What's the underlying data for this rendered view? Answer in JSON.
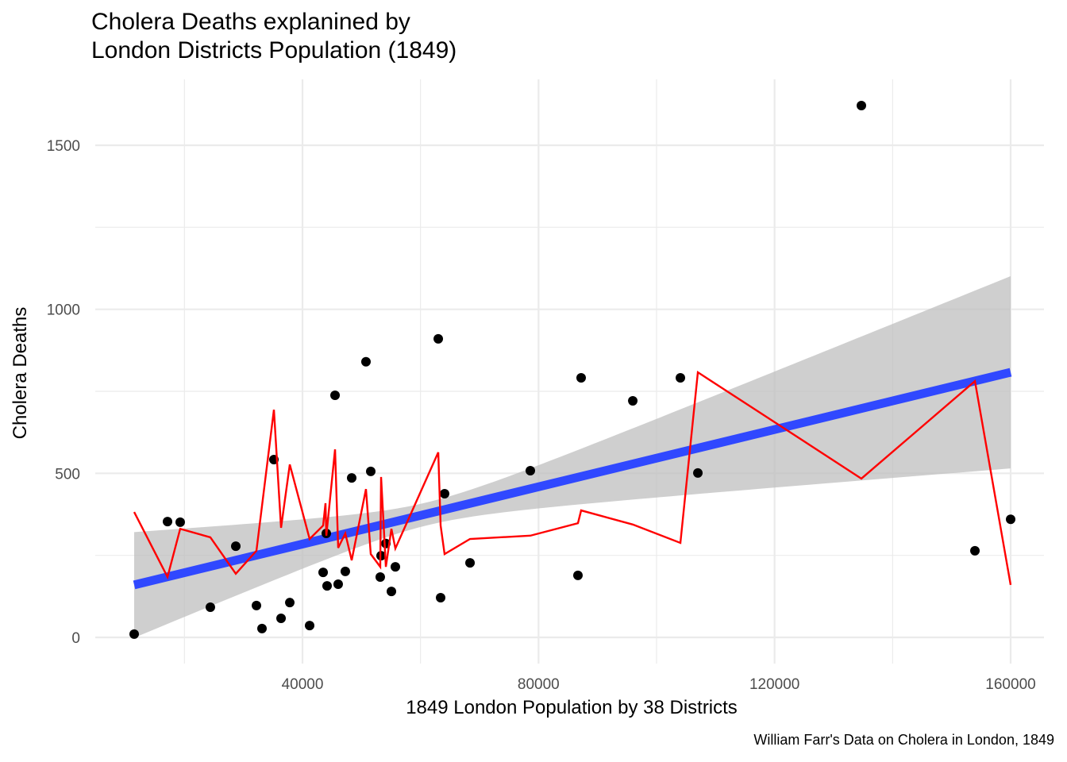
{
  "chart_data": {
    "type": "scatter",
    "title_lines": [
      "Cholera Deaths explanined by",
      "London Districts Population (1849)"
    ],
    "xlabel": "1849 London Population by 38 Districts",
    "ylabel": "Cholera Deaths",
    "caption": "William Farr's Data on Cholera in London, 1849",
    "xlim": [
      3000,
      167500
    ],
    "ylim": [
      -80,
      1700
    ],
    "x_ticks": [
      40000,
      80000,
      120000,
      160000
    ],
    "x_tick_labels": [
      "40000",
      "80000",
      "120000",
      "160000"
    ],
    "x_minor_grid": [
      20000,
      60000,
      100000,
      140000
    ],
    "y_ticks": [
      0,
      500,
      1000,
      1500
    ],
    "y_tick_labels": [
      "0",
      "500",
      "1000",
      "1500"
    ],
    "y_minor_grid": [
      250,
      750,
      1250
    ],
    "grid": true,
    "legend": "none",
    "colors": {
      "points": "#000000",
      "fit_line": "#3048ff",
      "ci_band": "#bdbdbd",
      "red_line": "#ff0000",
      "grid": "#ebebeb"
    },
    "points": [
      {
        "x": 11480,
        "y": 10
      },
      {
        "x": 17130,
        "y": 353
      },
      {
        "x": 19280,
        "y": 351
      },
      {
        "x": 24390,
        "y": 92
      },
      {
        "x": 28700,
        "y": 278
      },
      {
        "x": 32200,
        "y": 97
      },
      {
        "x": 33140,
        "y": 27
      },
      {
        "x": 35160,
        "y": 542
      },
      {
        "x": 36370,
        "y": 58
      },
      {
        "x": 37850,
        "y": 106
      },
      {
        "x": 41210,
        "y": 36
      },
      {
        "x": 43500,
        "y": 198
      },
      {
        "x": 44040,
        "y": 317
      },
      {
        "x": 44170,
        "y": 157
      },
      {
        "x": 45520,
        "y": 738
      },
      {
        "x": 46050,
        "y": 162
      },
      {
        "x": 47260,
        "y": 201
      },
      {
        "x": 48340,
        "y": 486
      },
      {
        "x": 50760,
        "y": 840
      },
      {
        "x": 51570,
        "y": 506
      },
      {
        "x": 53180,
        "y": 184
      },
      {
        "x": 53320,
        "y": 249
      },
      {
        "x": 54130,
        "y": 286
      },
      {
        "x": 55070,
        "y": 140
      },
      {
        "x": 55740,
        "y": 215
      },
      {
        "x": 63010,
        "y": 910
      },
      {
        "x": 63410,
        "y": 121
      },
      {
        "x": 64080,
        "y": 438
      },
      {
        "x": 68390,
        "y": 227
      },
      {
        "x": 78610,
        "y": 508
      },
      {
        "x": 86680,
        "y": 189
      },
      {
        "x": 87220,
        "y": 791
      },
      {
        "x": 95970,
        "y": 721
      },
      {
        "x": 104040,
        "y": 791
      },
      {
        "x": 107000,
        "y": 501
      },
      {
        "x": 134710,
        "y": 1621
      },
      {
        "x": 153950,
        "y": 264
      },
      {
        "x": 160000,
        "y": 360
      }
    ],
    "red_line": [
      {
        "x": 11480,
        "y": 382
      },
      {
        "x": 17130,
        "y": 184
      },
      {
        "x": 19280,
        "y": 331
      },
      {
        "x": 24390,
        "y": 305
      },
      {
        "x": 28700,
        "y": 194
      },
      {
        "x": 32200,
        "y": 264
      },
      {
        "x": 35160,
        "y": 694
      },
      {
        "x": 36370,
        "y": 334
      },
      {
        "x": 37850,
        "y": 527
      },
      {
        "x": 41210,
        "y": 300
      },
      {
        "x": 43500,
        "y": 341
      },
      {
        "x": 43900,
        "y": 409
      },
      {
        "x": 44040,
        "y": 310
      },
      {
        "x": 45520,
        "y": 573
      },
      {
        "x": 46050,
        "y": 273
      },
      {
        "x": 47260,
        "y": 317
      },
      {
        "x": 48340,
        "y": 235
      },
      {
        "x": 50760,
        "y": 452
      },
      {
        "x": 51570,
        "y": 254
      },
      {
        "x": 53180,
        "y": 215
      },
      {
        "x": 53320,
        "y": 489
      },
      {
        "x": 54130,
        "y": 215
      },
      {
        "x": 55070,
        "y": 331
      },
      {
        "x": 55740,
        "y": 271
      },
      {
        "x": 63010,
        "y": 564
      },
      {
        "x": 63410,
        "y": 341
      },
      {
        "x": 64080,
        "y": 254
      },
      {
        "x": 68390,
        "y": 300
      },
      {
        "x": 78610,
        "y": 310
      },
      {
        "x": 86680,
        "y": 348
      },
      {
        "x": 87220,
        "y": 387
      },
      {
        "x": 95970,
        "y": 344
      },
      {
        "x": 104040,
        "y": 288
      },
      {
        "x": 107000,
        "y": 808
      },
      {
        "x": 134710,
        "y": 484
      },
      {
        "x": 153950,
        "y": 781
      },
      {
        "x": 160000,
        "y": 160
      }
    ],
    "fit": {
      "method": "lm",
      "x_range": [
        11480,
        160000
      ],
      "y_at_start": 160,
      "y_at_end": 808,
      "ci_at_start": [
        0,
        322
      ],
      "ci_at_end": [
        512,
        1098
      ],
      "ci_half_width_min": 35,
      "x_mean": 61000
    }
  }
}
